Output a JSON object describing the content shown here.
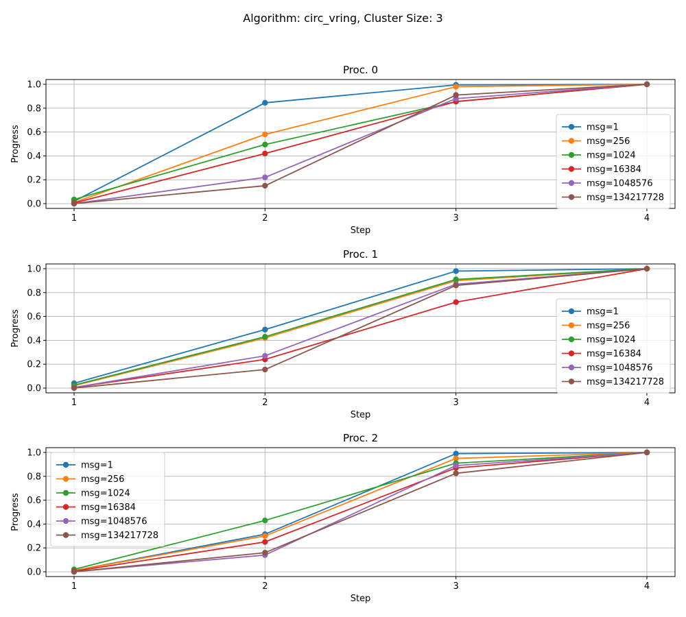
{
  "chart_data": {
    "title": "Algorithm: circ_vring, Cluster Size: 3",
    "type": "line",
    "colors": [
      "#1f77b4",
      "#ff7f0e",
      "#2ca02c",
      "#d62728",
      "#9467bd",
      "#8c564b"
    ],
    "subplots": [
      {
        "title": "Proc. 0",
        "xlabel": "Step",
        "ylabel": "Progress",
        "x": [
          1,
          2,
          3,
          4
        ],
        "xticks": [
          "1",
          "2",
          "3",
          "4"
        ],
        "ylim": [
          -0.04,
          1.04
        ],
        "yticks": [
          "0.0",
          "0.2",
          "0.4",
          "0.6",
          "0.8",
          "1.0"
        ],
        "grid": true,
        "legend": "center-right",
        "series": [
          {
            "name": "msg=1",
            "values": [
              0.02,
              0.845,
              0.995,
              1.0
            ]
          },
          {
            "name": "msg=256",
            "values": [
              0.01,
              0.58,
              0.98,
              1.0
            ]
          },
          {
            "name": "msg=1024",
            "values": [
              0.035,
              0.495,
              0.855,
              1.0
            ]
          },
          {
            "name": "msg=16384",
            "values": [
              0.005,
              0.42,
              0.855,
              1.0
            ]
          },
          {
            "name": "msg=1048576",
            "values": [
              0.0,
              0.22,
              0.88,
              1.0
            ]
          },
          {
            "name": "msg=134217728",
            "values": [
              0.0,
              0.15,
              0.91,
              1.0
            ]
          }
        ]
      },
      {
        "title": "Proc. 1",
        "xlabel": "Step",
        "ylabel": "Progress",
        "x": [
          1,
          2,
          3,
          4
        ],
        "xticks": [
          "1",
          "2",
          "3",
          "4"
        ],
        "ylim": [
          -0.04,
          1.04
        ],
        "yticks": [
          "0.0",
          "0.2",
          "0.4",
          "0.6",
          "0.8",
          "1.0"
        ],
        "grid": true,
        "legend": "center-right",
        "series": [
          {
            "name": "msg=1",
            "values": [
              0.04,
              0.49,
              0.98,
              1.0
            ]
          },
          {
            "name": "msg=256",
            "values": [
              0.02,
              0.42,
              0.9,
              1.0
            ]
          },
          {
            "name": "msg=1024",
            "values": [
              0.025,
              0.43,
              0.91,
              1.0
            ]
          },
          {
            "name": "msg=16384",
            "values": [
              0.005,
              0.24,
              0.72,
              1.0
            ]
          },
          {
            "name": "msg=1048576",
            "values": [
              0.005,
              0.27,
              0.87,
              1.0
            ]
          },
          {
            "name": "msg=134217728",
            "values": [
              0.0,
              0.155,
              0.86,
              1.0
            ]
          }
        ]
      },
      {
        "title": "Proc. 2",
        "xlabel": "Step",
        "ylabel": "Progress",
        "x": [
          1,
          2,
          3,
          4
        ],
        "xticks": [
          "1",
          "2",
          "3",
          "4"
        ],
        "ylim": [
          -0.04,
          1.04
        ],
        "yticks": [
          "0.0",
          "0.2",
          "0.4",
          "0.6",
          "0.8",
          "1.0"
        ],
        "grid": true,
        "legend": "upper-left",
        "series": [
          {
            "name": "msg=1",
            "values": [
              0.01,
              0.315,
              0.99,
              1.0
            ]
          },
          {
            "name": "msg=256",
            "values": [
              0.01,
              0.3,
              0.95,
              1.0
            ]
          },
          {
            "name": "msg=1024",
            "values": [
              0.02,
              0.43,
              0.91,
              1.0
            ]
          },
          {
            "name": "msg=16384",
            "values": [
              0.005,
              0.25,
              0.87,
              1.0
            ]
          },
          {
            "name": "msg=1048576",
            "values": [
              0.0,
              0.14,
              0.89,
              1.0
            ]
          },
          {
            "name": "msg=134217728",
            "values": [
              0.0,
              0.16,
              0.825,
              1.0
            ]
          }
        ]
      }
    ]
  }
}
